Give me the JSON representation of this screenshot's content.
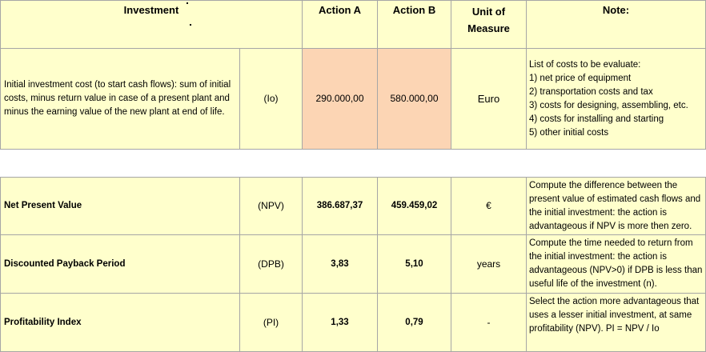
{
  "table1": {
    "headers": {
      "investment": "Investment",
      "action_a": "Action A",
      "action_b": "Action B",
      "unit": "Unit of Measure",
      "note": "Note:"
    },
    "row": {
      "description": "Initial investment cost (to start cash flows): sum of initial costs, minus return value in case of a present plant and minus the earning value of the new plant at end of life.",
      "symbol": "(Io)",
      "action_a": "290.000,00",
      "action_b": "580.000,00",
      "unit": "Euro",
      "note_title": "List of costs to be evaluate:",
      "note_items": [
        "1) net price of equipment",
        "2) transportation costs and tax",
        "3) costs for designing, assembling, etc.",
        "4) costs for installing and starting",
        "5) other initial costs"
      ]
    }
  },
  "table2": {
    "rows": [
      {
        "label": "Net Present Value",
        "symbol": "(NPV)",
        "action_a": "386.687,37",
        "action_b": "459.459,02",
        "unit": "€",
        "note": "Compute the difference between the present value of estimated cash flows and the initial investment: the action is advantageous if NPV is more then zero."
      },
      {
        "label": "Discounted Payback Period",
        "symbol": "(DPB)",
        "action_a": "3,83",
        "action_b": "5,10",
        "unit": "years",
        "note": "Compute the time needed to return from the initial investment: the action is advantageous (NPV>0) if DPB is less than useful life of the investment (n)."
      },
      {
        "label": "Profitability Index",
        "symbol": "(PI)",
        "action_a": "1,33",
        "action_b": "0,79",
        "unit": "-",
        "note": "Select the action more advantageous that uses a lesser initial investment, at same profitability (NPV). PI = NPV / Io"
      }
    ]
  },
  "colors": {
    "cell_fill": "#ffffcc",
    "highlight_fill": "#fcd5b4",
    "gridline": "#a6a6a6"
  }
}
